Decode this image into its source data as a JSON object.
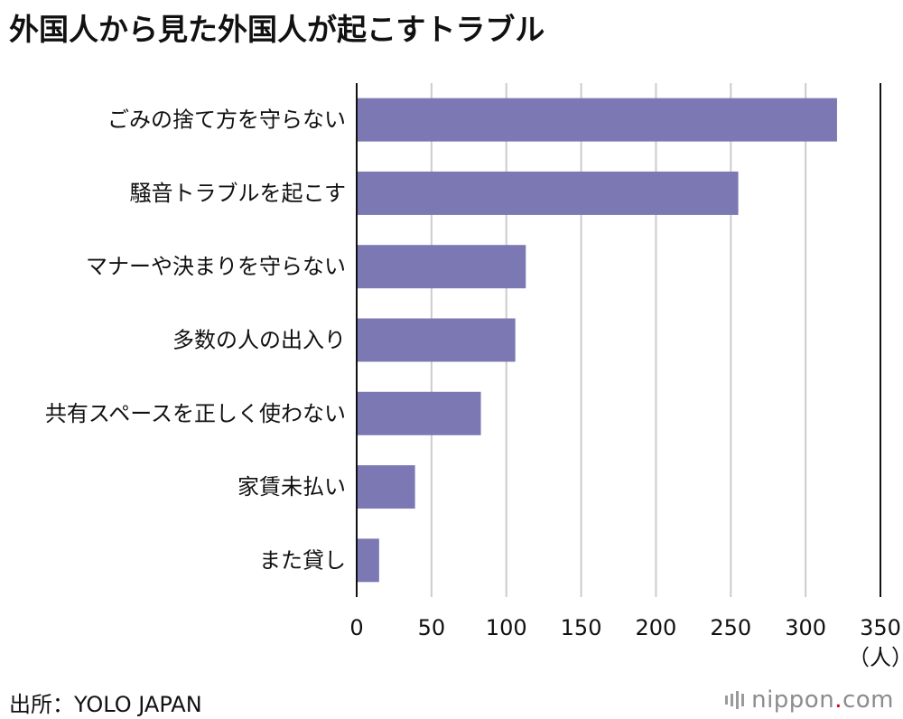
{
  "title": "外国人から見た外国人が起こすトラブル",
  "source": "出所：YOLO JAPAN",
  "logo": {
    "name": "nippon.com",
    "prefix": "nippon",
    "dot": ".",
    "suffix": "com"
  },
  "colors": {
    "bar": "#7b78b3",
    "grid": "#cccccc",
    "axis": "#111111"
  },
  "chart_data": {
    "type": "bar",
    "orientation": "horizontal",
    "title": "外国人から見た外国人が起こすトラブル",
    "categories": [
      "ごみの捨て方を守らない",
      "騒音トラブルを起こす",
      "マナーや決まりを守らない",
      "多数の人の出入り",
      "共有スペースを正しく使わない",
      "家賃未払い",
      "また貸し"
    ],
    "values": [
      321,
      255,
      113,
      106,
      83,
      39,
      15
    ],
    "xlim": [
      0,
      350
    ],
    "xticks": [
      0,
      50,
      100,
      150,
      200,
      250,
      300,
      350
    ],
    "xlabel": "（人）",
    "ylabel": "",
    "grid": true
  }
}
